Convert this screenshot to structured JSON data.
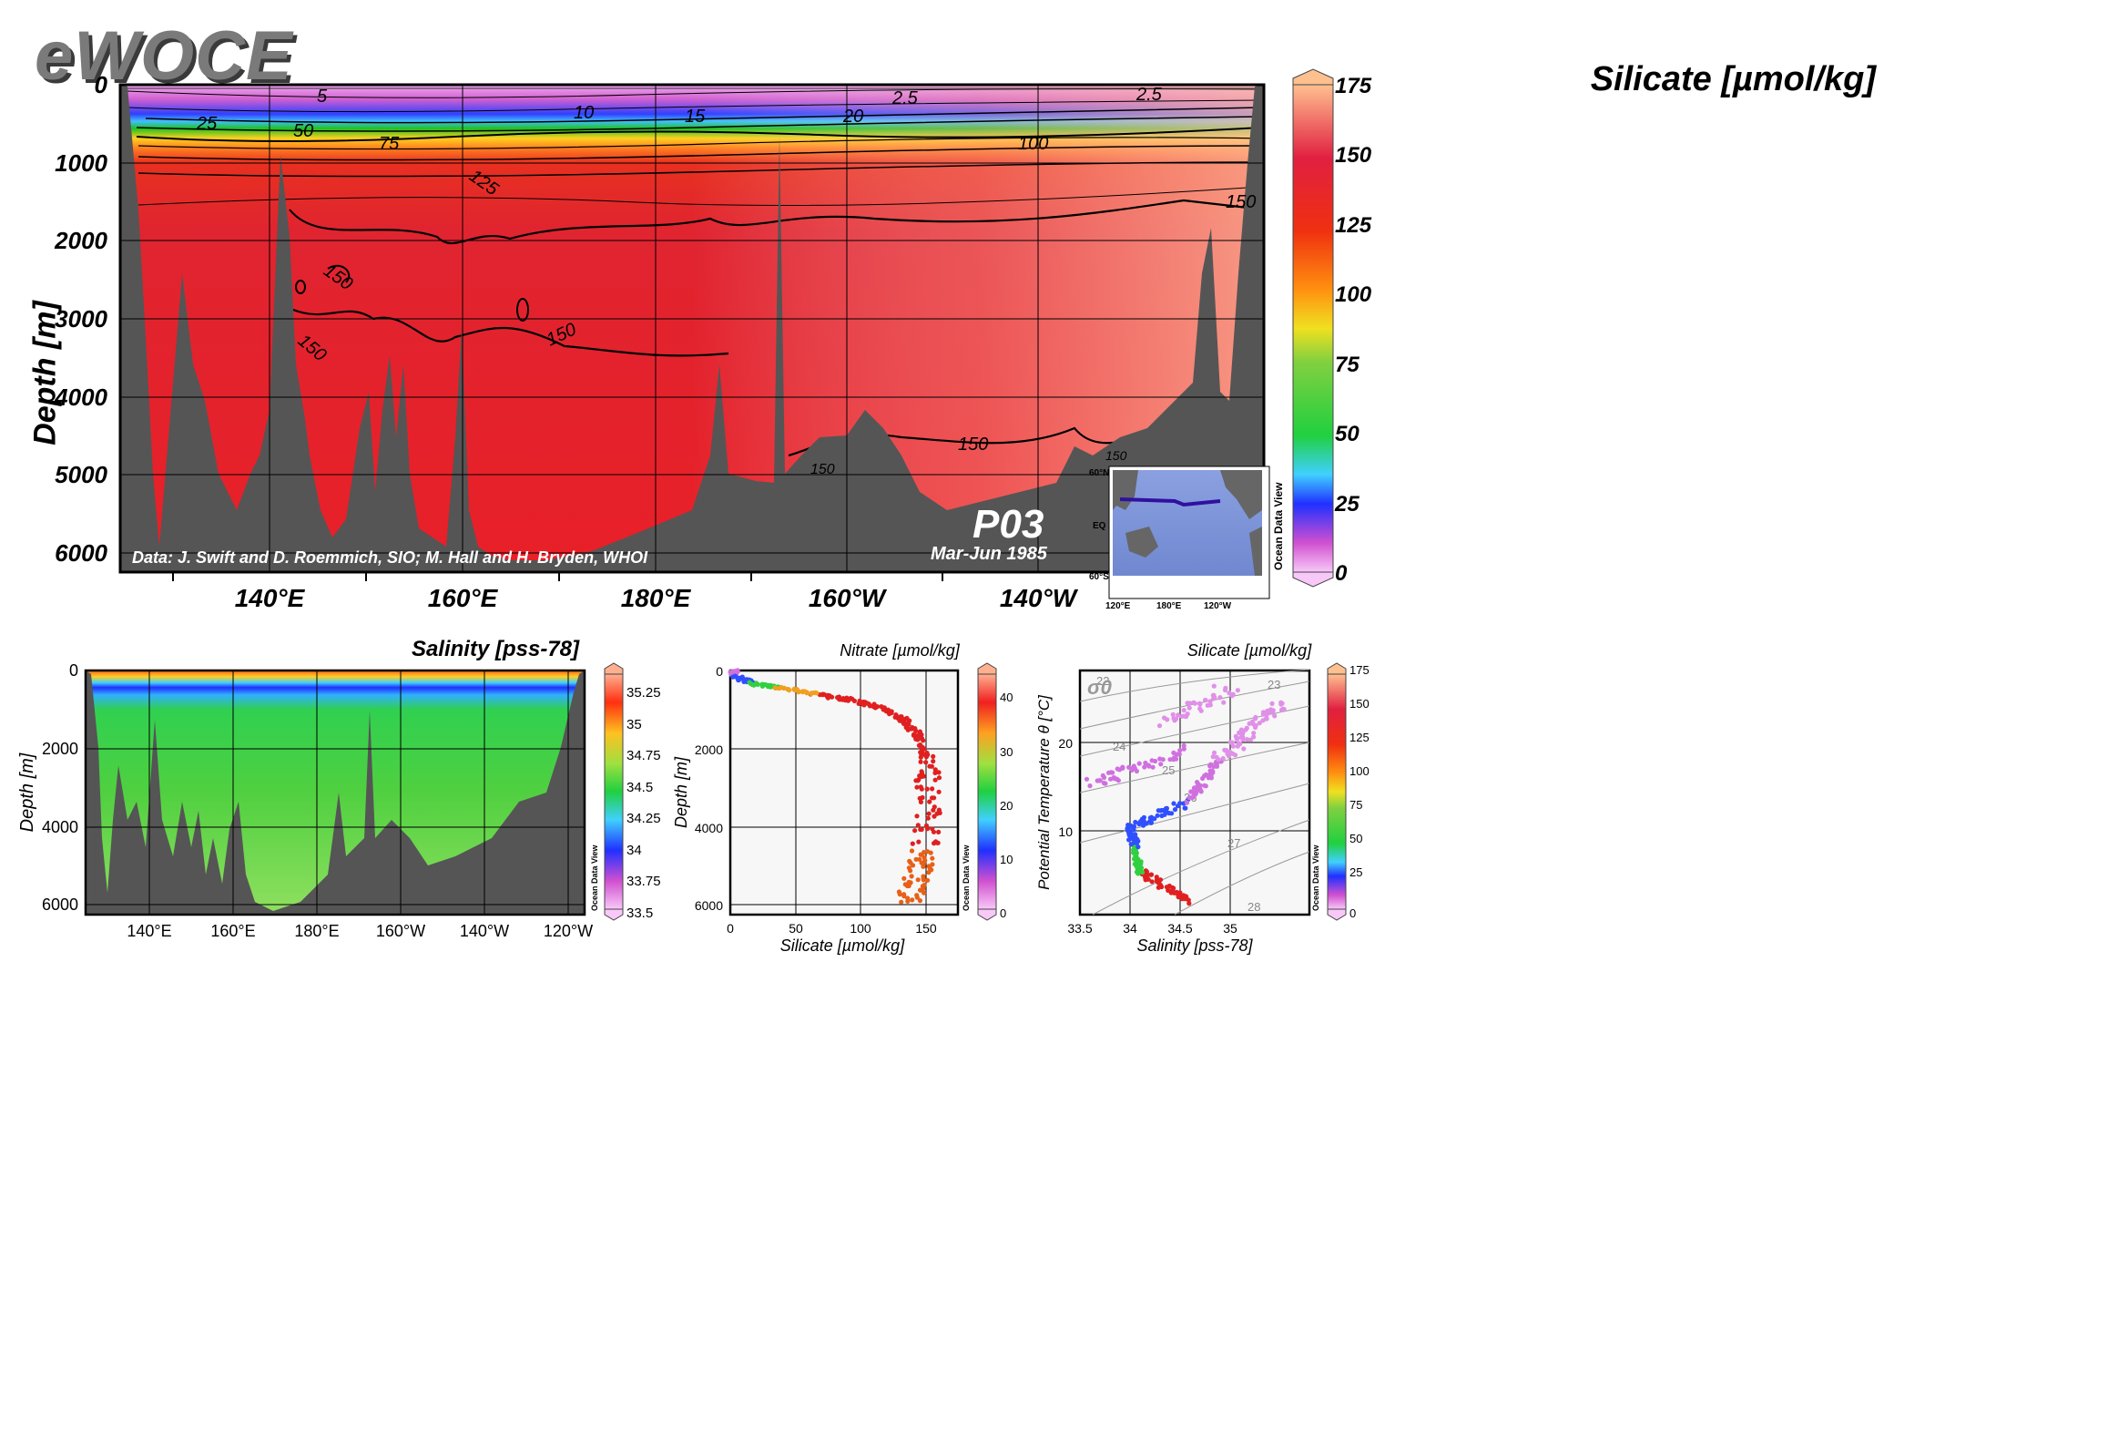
{
  "logo": "eWOCE",
  "colors": {
    "bathymetry": "#555555",
    "contour": "#000000",
    "frame": "#000000"
  },
  "chart_data": [
    {
      "type": "heatmap",
      "title": "Silicate [µmol/kg]",
      "ylabel": "Depth [m]",
      "xlabel": "",
      "x_ticks": [
        "140°E",
        "160°E",
        "180°E",
        "160°W",
        "140°W"
      ],
      "y_ticks": [
        0,
        1000,
        2000,
        3000,
        4000,
        5000,
        6000
      ],
      "ylim": [
        6200,
        0
      ],
      "y_inverted": true,
      "colorbar": {
        "min": 0,
        "max": 175,
        "ticks": [
          0,
          25,
          50,
          75,
          100,
          125,
          150,
          175
        ]
      },
      "contour_labels": [
        {
          "value": "5"
        },
        {
          "value": "2.5"
        },
        {
          "value": "2.5"
        },
        {
          "value": "10"
        },
        {
          "value": "15"
        },
        {
          "value": "20"
        },
        {
          "value": "25"
        },
        {
          "value": "50"
        },
        {
          "value": "75"
        },
        {
          "value": "100"
        },
        {
          "value": "125"
        },
        {
          "value": "150"
        },
        {
          "value": "150"
        },
        {
          "value": "150"
        },
        {
          "value": "150"
        },
        {
          "value": "150"
        },
        {
          "value": "150"
        },
        {
          "value": "150"
        }
      ],
      "annotations": {
        "credit": "Data: J. Swift and D. Roemmich, SIO; M. Hall and H. Bryden, WHOI",
        "section": "P03",
        "period": "Mar-Jun 1985"
      },
      "map_inset": {
        "lat_labels": [
          "60°N",
          "EQ",
          "60°S"
        ],
        "lon_labels": [
          "120°E",
          "180°E",
          "120°W"
        ],
        "watermark": "Ocean Data View"
      }
    },
    {
      "type": "heatmap",
      "title": "Salinity [pss-78]",
      "ylabel": "Depth [m]",
      "x_ticks": [
        "140°E",
        "160°E",
        "180°E",
        "160°W",
        "140°W",
        "120°W"
      ],
      "y_ticks": [
        0,
        2000,
        4000,
        6000
      ],
      "ylim": [
        6200,
        0
      ],
      "colorbar": {
        "min": 33.5,
        "max": 35.4,
        "ticks": [
          33.5,
          33.75,
          34,
          34.25,
          34.5,
          34.75,
          35,
          35.25
        ]
      },
      "watermark": "Ocean Data View"
    },
    {
      "type": "scatter",
      "title": "Nitrate [µmol/kg]",
      "xlabel": "Silicate [µmol/kg]",
      "ylabel": "Depth [m]",
      "xlim": [
        0,
        175
      ],
      "ylim": [
        6200,
        0
      ],
      "x_ticks": [
        0,
        50,
        100,
        150
      ],
      "y_ticks": [
        0,
        2000,
        4000,
        6000
      ],
      "colorbar": {
        "min": 0,
        "max": 45,
        "ticks": [
          0,
          10,
          20,
          30,
          40
        ]
      },
      "watermark": "Ocean Data View",
      "profile": [
        {
          "x": 2,
          "y": 0
        },
        {
          "x": 5,
          "y": 150
        },
        {
          "x": 15,
          "y": 300
        },
        {
          "x": 30,
          "y": 400
        },
        {
          "x": 50,
          "y": 500
        },
        {
          "x": 75,
          "y": 650
        },
        {
          "x": 100,
          "y": 800
        },
        {
          "x": 120,
          "y": 1000
        },
        {
          "x": 135,
          "y": 1300
        },
        {
          "x": 145,
          "y": 1700
        },
        {
          "x": 150,
          "y": 2200
        },
        {
          "x": 153,
          "y": 3000
        },
        {
          "x": 152,
          "y": 4000
        },
        {
          "x": 148,
          "y": 4800
        },
        {
          "x": 142,
          "y": 5400
        },
        {
          "x": 137,
          "y": 5900
        }
      ]
    },
    {
      "type": "scatter",
      "title": "Silicate [µmol/kg]",
      "xlabel": "Salinity [pss-78]",
      "ylabel": "Potential Temperature θ [°C]",
      "xlim": [
        33.5,
        35.8
      ],
      "ylim": [
        0,
        28
      ],
      "x_ticks": [
        33.5,
        34,
        34.5,
        35
      ],
      "y_ticks": [
        10,
        20
      ],
      "sigma_label": "σ0",
      "isopycnal_labels": [
        "22",
        "23",
        "24",
        "25",
        "26",
        "27",
        "28"
      ],
      "colorbar": {
        "min": 0,
        "max": 175,
        "ticks": [
          0,
          25,
          50,
          75,
          100,
          125,
          150,
          175
        ]
      },
      "watermark": "Ocean Data View"
    }
  ]
}
